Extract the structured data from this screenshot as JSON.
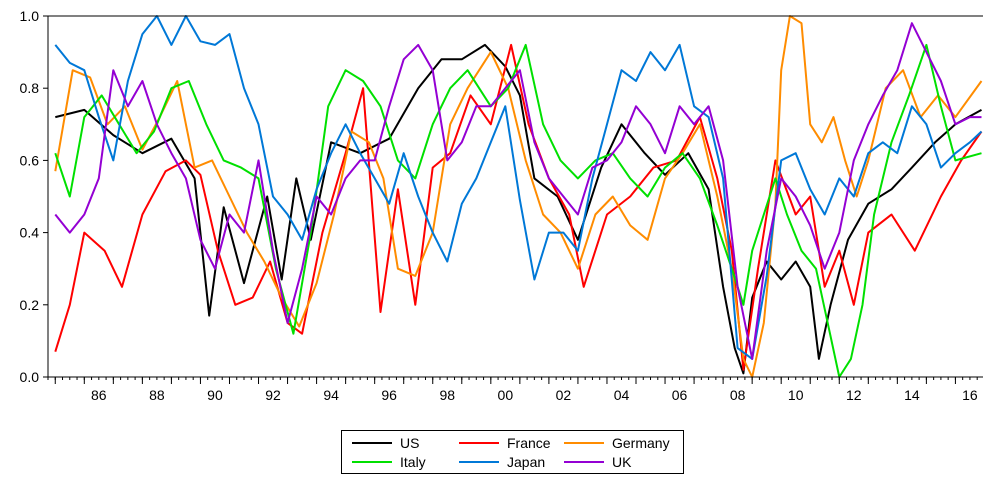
{
  "chart_data": {
    "type": "line",
    "title": "",
    "xlabel": "",
    "ylabel": "",
    "ylim": [
      0.0,
      1.0
    ],
    "xlim": [
      1984.75,
      2016.95
    ],
    "y_ticks": [
      "0.0",
      "0.2",
      "0.4",
      "0.6",
      "0.8",
      "1.0"
    ],
    "x_tick_labels": [
      "86",
      "88",
      "90",
      "92",
      "94",
      "96",
      "98",
      "00",
      "02",
      "04",
      "06",
      "08",
      "10",
      "12",
      "14",
      "16"
    ],
    "x_tick_years": [
      1986,
      1988,
      1990,
      1992,
      1994,
      1996,
      1998,
      2000,
      2002,
      2004,
      2006,
      2008,
      2010,
      2012,
      2014,
      2016
    ],
    "grid": false,
    "legend_position": "bottom-center",
    "series": [
      {
        "name": "US",
        "color": "#000000",
        "x": [
          1985.0,
          1986.0,
          1987.0,
          1988.0,
          1989.0,
          1989.8,
          1990.3,
          1990.8,
          1991.5,
          1992.3,
          1992.8,
          1993.3,
          1993.8,
          1994.5,
          1995.5,
          1996.5,
          1997.5,
          1998.3,
          1999.0,
          1999.8,
          2000.5,
          2001.0,
          2001.5,
          2002.3,
          2003.0,
          2003.8,
          2004.5,
          2005.3,
          2006.0,
          2006.8,
          2007.5,
          2008.0,
          2008.4,
          2008.7,
          2009.0,
          2009.5,
          2010.0,
          2010.5,
          2011.0,
          2011.3,
          2011.7,
          2012.3,
          2013.0,
          2013.8,
          2014.5,
          2015.3,
          2016.0,
          2016.9
        ],
        "values": [
          0.72,
          0.74,
          0.67,
          0.62,
          0.66,
          0.55,
          0.17,
          0.47,
          0.26,
          0.5,
          0.27,
          0.55,
          0.38,
          0.65,
          0.62,
          0.66,
          0.8,
          0.88,
          0.88,
          0.92,
          0.86,
          0.78,
          0.55,
          0.5,
          0.38,
          0.58,
          0.7,
          0.62,
          0.56,
          0.62,
          0.52,
          0.25,
          0.08,
          0.01,
          0.22,
          0.32,
          0.27,
          0.32,
          0.25,
          0.05,
          0.2,
          0.38,
          0.48,
          0.52,
          0.58,
          0.65,
          0.7,
          0.74
        ]
      },
      {
        "name": "France",
        "color": "#ff0000",
        "x": [
          1985.0,
          1985.5,
          1986.0,
          1986.7,
          1987.3,
          1988.0,
          1988.8,
          1989.5,
          1990.0,
          1990.6,
          1991.2,
          1991.8,
          1992.4,
          1993.0,
          1993.5,
          1994.2,
          1995.0,
          1995.6,
          1996.2,
          1996.8,
          1997.4,
          1998.0,
          1998.6,
          1999.3,
          2000.0,
          2000.7,
          2001.3,
          2002.0,
          2002.7,
          2003.2,
          2004.0,
          2004.8,
          2005.6,
          2006.4,
          2007.2,
          2007.8,
          2008.3,
          2008.7,
          2009.2,
          2009.8,
          2010.5,
          2011.0,
          2011.5,
          2012.0,
          2012.5,
          2013.0,
          2013.8,
          2014.6,
          2015.5,
          2016.2,
          2016.9
        ],
        "values": [
          0.07,
          0.2,
          0.4,
          0.35,
          0.25,
          0.45,
          0.57,
          0.6,
          0.56,
          0.35,
          0.2,
          0.22,
          0.32,
          0.15,
          0.12,
          0.4,
          0.62,
          0.8,
          0.18,
          0.52,
          0.2,
          0.58,
          0.62,
          0.78,
          0.7,
          0.92,
          0.7,
          0.55,
          0.45,
          0.25,
          0.45,
          0.5,
          0.58,
          0.6,
          0.72,
          0.55,
          0.35,
          0.02,
          0.3,
          0.6,
          0.45,
          0.5,
          0.25,
          0.35,
          0.2,
          0.4,
          0.45,
          0.35,
          0.5,
          0.6,
          0.68
        ]
      },
      {
        "name": "Germany",
        "color": "#ff8c00",
        "x": [
          1985.0,
          1985.6,
          1986.2,
          1986.8,
          1987.4,
          1988.0,
          1988.6,
          1989.2,
          1989.8,
          1990.4,
          1991.0,
          1991.6,
          1992.2,
          1992.8,
          1993.4,
          1994.0,
          1994.6,
          1995.2,
          1995.8,
          1996.3,
          1996.8,
          1997.4,
          1998.0,
          1998.6,
          1999.2,
          2000.0,
          2000.6,
          2001.2,
          2001.8,
          2002.4,
          2003.0,
          2003.6,
          2004.2,
          2004.8,
          2005.4,
          2006.0,
          2006.6,
          2007.2,
          2007.8,
          2008.3,
          2008.7,
          2009.0,
          2009.4,
          2009.8,
          2010.0,
          2010.3,
          2010.7,
          2011.0,
          2011.4,
          2011.8,
          2012.2,
          2012.6,
          2013.0,
          2013.6,
          2014.2,
          2014.8,
          2015.4,
          2016.0,
          2016.9
        ],
        "values": [
          0.57,
          0.85,
          0.83,
          0.7,
          0.75,
          0.63,
          0.72,
          0.82,
          0.58,
          0.6,
          0.5,
          0.4,
          0.32,
          0.22,
          0.14,
          0.26,
          0.45,
          0.68,
          0.65,
          0.55,
          0.3,
          0.28,
          0.4,
          0.7,
          0.8,
          0.9,
          0.8,
          0.6,
          0.45,
          0.4,
          0.3,
          0.45,
          0.5,
          0.42,
          0.38,
          0.55,
          0.62,
          0.7,
          0.5,
          0.3,
          0.05,
          0.0,
          0.15,
          0.48,
          0.85,
          1.0,
          0.98,
          0.7,
          0.65,
          0.72,
          0.6,
          0.5,
          0.6,
          0.8,
          0.85,
          0.72,
          0.78,
          0.72,
          0.82
        ]
      },
      {
        "name": "Italy",
        "color": "#00e000",
        "x": [
          1985.0,
          1985.5,
          1986.0,
          1986.6,
          1987.2,
          1987.8,
          1988.4,
          1989.0,
          1989.6,
          1990.2,
          1990.8,
          1991.4,
          1992.0,
          1992.6,
          1993.2,
          1993.8,
          1994.4,
          1995.0,
          1995.6,
          1996.2,
          1996.8,
          1997.4,
          1998.0,
          1998.6,
          1999.2,
          2000.0,
          2000.6,
          2001.2,
          2001.8,
          2002.4,
          2003.0,
          2003.6,
          2004.2,
          2004.8,
          2005.4,
          2006.0,
          2006.6,
          2007.2,
          2007.8,
          2008.3,
          2008.7,
          2009.0,
          2009.4,
          2009.8,
          2010.2,
          2010.7,
          2011.2,
          2011.6,
          2012.0,
          2012.4,
          2012.8,
          2013.2,
          2013.8,
          2014.4,
          2015.0,
          2015.5,
          2016.0,
          2016.9
        ],
        "values": [
          0.62,
          0.5,
          0.72,
          0.78,
          0.7,
          0.62,
          0.68,
          0.8,
          0.82,
          0.7,
          0.6,
          0.58,
          0.55,
          0.3,
          0.12,
          0.4,
          0.75,
          0.85,
          0.82,
          0.75,
          0.6,
          0.55,
          0.7,
          0.8,
          0.85,
          0.75,
          0.8,
          0.92,
          0.7,
          0.6,
          0.55,
          0.6,
          0.62,
          0.55,
          0.5,
          0.58,
          0.62,
          0.55,
          0.42,
          0.3,
          0.2,
          0.35,
          0.45,
          0.55,
          0.45,
          0.35,
          0.3,
          0.15,
          0.0,
          0.05,
          0.2,
          0.45,
          0.65,
          0.78,
          0.92,
          0.75,
          0.6,
          0.62
        ]
      },
      {
        "name": "Japan",
        "color": "#0078d7",
        "x": [
          1985.0,
          1985.5,
          1986.0,
          1986.5,
          1987.0,
          1987.5,
          1988.0,
          1988.5,
          1989.0,
          1989.5,
          1990.0,
          1990.5,
          1991.0,
          1991.5,
          1992.0,
          1992.5,
          1993.0,
          1993.5,
          1994.0,
          1994.5,
          1995.0,
          1995.5,
          1996.0,
          1996.5,
          1997.0,
          1997.5,
          1998.0,
          1998.5,
          1999.0,
          1999.5,
          2000.0,
          2000.5,
          2001.0,
          2001.5,
          2002.0,
          2002.5,
          2003.0,
          2003.5,
          2004.0,
          2004.5,
          2005.0,
          2005.5,
          2006.0,
          2006.5,
          2007.0,
          2007.5,
          2008.0,
          2008.5,
          2009.0,
          2009.5,
          2010.0,
          2010.5,
          2011.0,
          2011.5,
          2012.0,
          2012.5,
          2013.0,
          2013.5,
          2014.0,
          2014.5,
          2015.0,
          2015.5,
          2016.0,
          2016.5,
          2016.9
        ],
        "values": [
          0.92,
          0.87,
          0.85,
          0.72,
          0.6,
          0.82,
          0.95,
          1.0,
          0.92,
          1.0,
          0.93,
          0.92,
          0.95,
          0.8,
          0.7,
          0.5,
          0.45,
          0.38,
          0.52,
          0.62,
          0.7,
          0.62,
          0.55,
          0.48,
          0.62,
          0.5,
          0.4,
          0.32,
          0.48,
          0.55,
          0.65,
          0.75,
          0.49,
          0.27,
          0.4,
          0.4,
          0.35,
          0.55,
          0.7,
          0.85,
          0.82,
          0.9,
          0.85,
          0.92,
          0.75,
          0.72,
          0.55,
          0.08,
          0.05,
          0.28,
          0.6,
          0.62,
          0.52,
          0.45,
          0.55,
          0.5,
          0.62,
          0.65,
          0.62,
          0.75,
          0.7,
          0.58,
          0.62,
          0.65,
          0.68
        ]
      },
      {
        "name": "UK",
        "color": "#9400d3",
        "x": [
          1985.0,
          1985.5,
          1986.0,
          1986.5,
          1987.0,
          1987.5,
          1988.0,
          1988.5,
          1989.0,
          1989.5,
          1990.0,
          1990.5,
          1991.0,
          1991.5,
          1992.0,
          1992.5,
          1993.0,
          1993.5,
          1994.0,
          1994.5,
          1995.0,
          1995.5,
          1996.0,
          1996.5,
          1997.0,
          1997.5,
          1998.0,
          1998.5,
          1999.0,
          1999.5,
          2000.0,
          2000.5,
          2001.0,
          2001.5,
          2002.0,
          2002.5,
          2003.0,
          2003.5,
          2004.0,
          2004.5,
          2005.0,
          2005.5,
          2006.0,
          2006.5,
          2007.0,
          2007.5,
          2008.0,
          2008.5,
          2009.0,
          2009.5,
          2010.0,
          2010.5,
          2011.0,
          2011.5,
          2012.0,
          2012.5,
          2013.0,
          2013.5,
          2014.0,
          2014.5,
          2015.0,
          2015.5,
          2016.0,
          2016.5,
          2016.9
        ],
        "values": [
          0.45,
          0.4,
          0.45,
          0.55,
          0.85,
          0.75,
          0.82,
          0.7,
          0.62,
          0.55,
          0.38,
          0.3,
          0.45,
          0.4,
          0.6,
          0.35,
          0.15,
          0.3,
          0.5,
          0.45,
          0.55,
          0.6,
          0.6,
          0.75,
          0.88,
          0.92,
          0.85,
          0.6,
          0.65,
          0.75,
          0.75,
          0.8,
          0.85,
          0.65,
          0.55,
          0.5,
          0.45,
          0.58,
          0.6,
          0.65,
          0.75,
          0.7,
          0.62,
          0.75,
          0.7,
          0.75,
          0.6,
          0.25,
          0.05,
          0.35,
          0.55,
          0.5,
          0.42,
          0.3,
          0.4,
          0.6,
          0.7,
          0.78,
          0.85,
          0.98,
          0.9,
          0.82,
          0.7,
          0.72,
          0.72
        ]
      }
    ]
  }
}
